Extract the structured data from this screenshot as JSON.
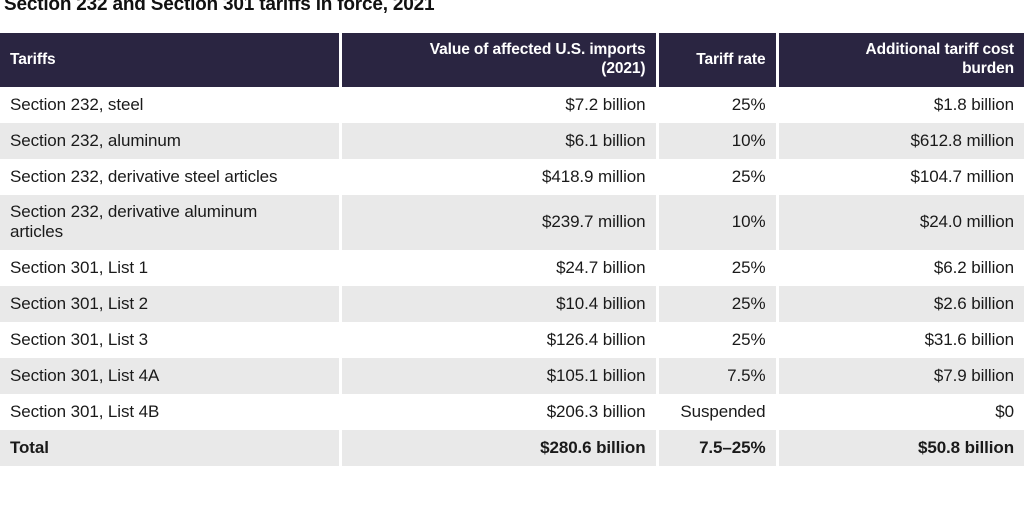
{
  "colors": {
    "header_bg": "#2a2541",
    "header_text": "#ffffff",
    "row_stripe_bg": "#e9e9e9",
    "row_bg": "#ffffff",
    "body_text": "#1a1a1a"
  },
  "chart_data": {
    "type": "table",
    "title": "Section 232 and Section 301 tariffs in force, 2021",
    "columns": [
      "Tariffs",
      "Value of affected U.S. imports (2021)",
      "Tariff rate",
      "Additional tariff cost burden"
    ],
    "rows": [
      [
        "Section 232, steel",
        "$7.2 billion",
        "25%",
        "$1.8 billion"
      ],
      [
        "Section 232, aluminum",
        "$6.1 billion",
        "10%",
        "$612.8 million"
      ],
      [
        "Section 232, derivative steel articles",
        "$418.9 million",
        "25%",
        "$104.7 million"
      ],
      [
        "Section 232, derivative aluminum articles",
        "$239.7 million",
        "10%",
        "$24.0 million"
      ],
      [
        "Section 301, List 1",
        "$24.7 billion",
        "25%",
        "$6.2 billion"
      ],
      [
        "Section 301, List 2",
        "$10.4 billion",
        "25%",
        "$2.6 billion"
      ],
      [
        "Section 301, List 3",
        "$126.4 billion",
        "25%",
        "$31.6 billion"
      ],
      [
        "Section 301, List 4A",
        "$105.1 billion",
        "7.5%",
        "$7.9 billion"
      ],
      [
        "Section 301, List 4B",
        "$206.3 billion",
        "Suspended",
        "$0"
      ]
    ],
    "total_row": [
      "Total",
      "$280.6 billion",
      "7.5–25%",
      "$50.8 billion"
    ]
  }
}
